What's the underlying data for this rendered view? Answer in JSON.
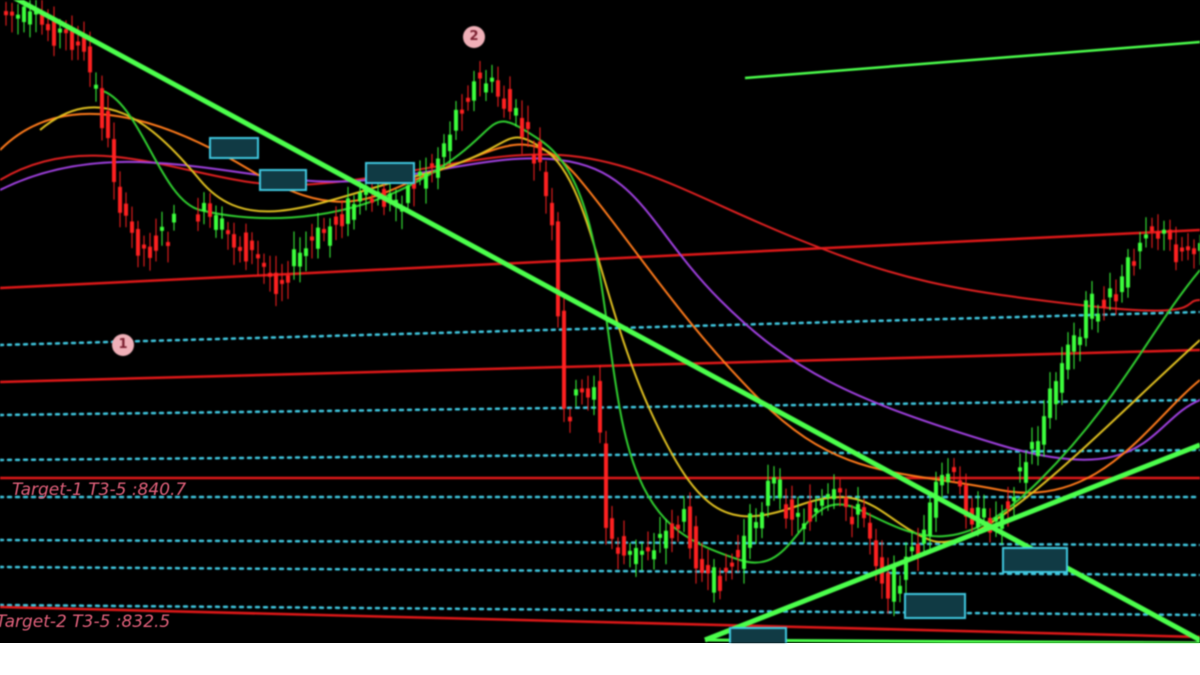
{
  "annotations": {
    "target_1": "Target-1 T3-5 :840.7",
    "target_2": "Target-2 T3-5 :832.5",
    "marker_1": "1",
    "marker_2": "2"
  },
  "colors": {
    "background": "#000000",
    "up_candle": "#3cff3c",
    "down_candle": "#ff2020",
    "trendline": "#4cff4c",
    "level_dotted": "#40c8e0",
    "level_red": "#e01818",
    "ma_red": "#e02020",
    "ma_purple": "#a040e0",
    "ma_orange": "#ff7a1a",
    "ma_yellow": "#e0c020",
    "ma_green": "#30d030",
    "label_pink": "#e0607a"
  }
}
